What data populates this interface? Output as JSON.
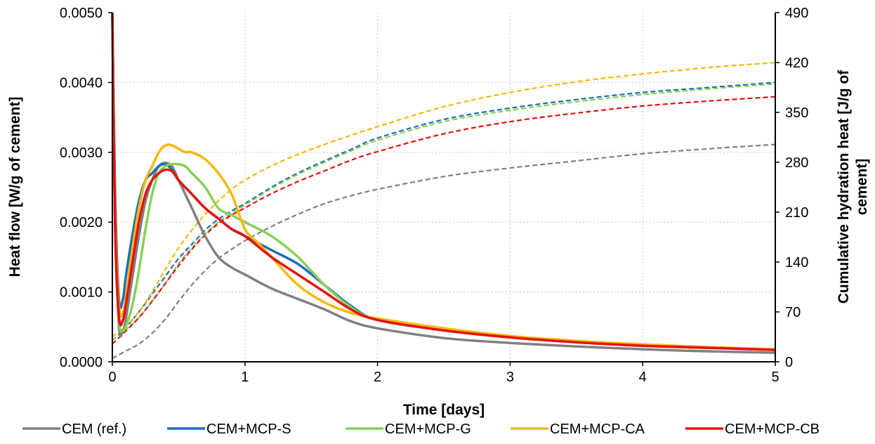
{
  "chart_data": {
    "type": "line",
    "xlabel": "Time [days]",
    "ylabel_left": "Heat flow [W/g of cement]",
    "ylabel_right": "Cumulative hydration heat [J/g of cement]",
    "ylabel_right_lines": [
      "Cumulative hydration heat [J/g of",
      "cement]"
    ],
    "xlim": [
      0,
      5
    ],
    "ylim_left": [
      0,
      0.005
    ],
    "ylim_right": [
      0,
      490
    ],
    "x_ticks": [
      "0",
      "1",
      "2",
      "3",
      "4",
      "5"
    ],
    "y_left_ticks": [
      "0.0000",
      "0.0010",
      "0.0020",
      "0.0030",
      "0.0040",
      "0.0050"
    ],
    "y_right_ticks": [
      "0",
      "70",
      "140",
      "210",
      "280",
      "350",
      "420",
      "490"
    ],
    "grid": "dotted",
    "legend_position": "bottom",
    "series": [
      {
        "name": "CEM (ref.)",
        "color": "#808080",
        "heat_flow": [
          [
            0,
            0.005
          ],
          [
            0.02,
            0.002
          ],
          [
            0.05,
            0.0005
          ],
          [
            0.08,
            0.00045
          ],
          [
            0.1,
            0.0006
          ],
          [
            0.15,
            0.0012
          ],
          [
            0.2,
            0.0018
          ],
          [
            0.25,
            0.0023
          ],
          [
            0.3,
            0.0026
          ],
          [
            0.35,
            0.0028
          ],
          [
            0.4,
            0.00285
          ],
          [
            0.45,
            0.0028
          ],
          [
            0.5,
            0.0026
          ],
          [
            0.6,
            0.0022
          ],
          [
            0.7,
            0.0018
          ],
          [
            0.8,
            0.0015
          ],
          [
            0.9,
            0.00135
          ],
          [
            1.0,
            0.00125
          ],
          [
            1.2,
            0.00105
          ],
          [
            1.4,
            0.0009
          ],
          [
            1.6,
            0.00075
          ],
          [
            1.8,
            0.00058
          ],
          [
            2.0,
            0.00048
          ],
          [
            2.5,
            0.00034
          ],
          [
            3.0,
            0.00027
          ],
          [
            3.5,
            0.00022
          ],
          [
            4.0,
            0.00018
          ],
          [
            4.5,
            0.00015
          ],
          [
            5.0,
            0.00013
          ]
        ],
        "cumulative": [
          [
            0,
            5
          ],
          [
            0.1,
            15
          ],
          [
            0.2,
            25
          ],
          [
            0.3,
            40
          ],
          [
            0.4,
            60
          ],
          [
            0.5,
            85
          ],
          [
            0.6,
            108
          ],
          [
            0.7,
            128
          ],
          [
            0.8,
            145
          ],
          [
            0.9,
            158
          ],
          [
            1.0,
            170
          ],
          [
            1.2,
            190
          ],
          [
            1.4,
            207
          ],
          [
            1.6,
            222
          ],
          [
            1.8,
            233
          ],
          [
            2.0,
            242
          ],
          [
            2.5,
            260
          ],
          [
            3.0,
            272
          ],
          [
            3.5,
            282
          ],
          [
            4.0,
            292
          ],
          [
            4.5,
            299
          ],
          [
            5.0,
            305
          ]
        ]
      },
      {
        "name": "CEM+MCP-S",
        "color": "#1a6fba",
        "heat_flow": [
          [
            0,
            0.005
          ],
          [
            0.02,
            0.0025
          ],
          [
            0.05,
            0.0009
          ],
          [
            0.08,
            0.0009
          ],
          [
            0.1,
            0.0012
          ],
          [
            0.15,
            0.0018
          ],
          [
            0.2,
            0.0023
          ],
          [
            0.25,
            0.0026
          ],
          [
            0.3,
            0.0027
          ],
          [
            0.35,
            0.0028
          ],
          [
            0.4,
            0.00283
          ],
          [
            0.45,
            0.00275
          ],
          [
            0.5,
            0.0026
          ],
          [
            0.6,
            0.0024
          ],
          [
            0.7,
            0.0022
          ],
          [
            0.8,
            0.00205
          ],
          [
            0.9,
            0.0019
          ],
          [
            1.0,
            0.0018
          ],
          [
            1.2,
            0.0016
          ],
          [
            1.4,
            0.0014
          ],
          [
            1.6,
            0.0011
          ],
          [
            1.8,
            0.0008
          ],
          [
            2.0,
            0.0006
          ],
          [
            2.5,
            0.00045
          ],
          [
            3.0,
            0.00035
          ],
          [
            3.5,
            0.00028
          ],
          [
            4.0,
            0.00023
          ],
          [
            4.5,
            0.0002
          ],
          [
            5.0,
            0.00017
          ]
        ],
        "cumulative": [
          [
            0,
            30
          ],
          [
            0.1,
            48
          ],
          [
            0.2,
            70
          ],
          [
            0.3,
            95
          ],
          [
            0.4,
            120
          ],
          [
            0.5,
            145
          ],
          [
            0.6,
            165
          ],
          [
            0.7,
            185
          ],
          [
            0.8,
            200
          ],
          [
            0.9,
            212
          ],
          [
            1.0,
            222
          ],
          [
            1.2,
            245
          ],
          [
            1.4,
            265
          ],
          [
            1.6,
            282
          ],
          [
            1.8,
            298
          ],
          [
            2.0,
            314
          ],
          [
            2.5,
            340
          ],
          [
            3.0,
            356
          ],
          [
            3.5,
            368
          ],
          [
            4.0,
            378
          ],
          [
            4.5,
            385
          ],
          [
            5.0,
            392
          ]
        ]
      },
      {
        "name": "CEM+MCP-G",
        "color": "#86d155",
        "heat_flow": [
          [
            0,
            0.005
          ],
          [
            0.02,
            0.002
          ],
          [
            0.05,
            0.0006
          ],
          [
            0.08,
            0.00045
          ],
          [
            0.1,
            0.0005
          ],
          [
            0.15,
            0.0008
          ],
          [
            0.2,
            0.0013
          ],
          [
            0.25,
            0.0019
          ],
          [
            0.3,
            0.0024
          ],
          [
            0.35,
            0.0027
          ],
          [
            0.4,
            0.0028
          ],
          [
            0.45,
            0.00283
          ],
          [
            0.5,
            0.00283
          ],
          [
            0.55,
            0.0028
          ],
          [
            0.6,
            0.0027
          ],
          [
            0.7,
            0.0025
          ],
          [
            0.8,
            0.0022
          ],
          [
            0.9,
            0.0021
          ],
          [
            1.0,
            0.002
          ],
          [
            1.2,
            0.0018
          ],
          [
            1.4,
            0.0015
          ],
          [
            1.6,
            0.0011
          ],
          [
            1.8,
            0.00078
          ],
          [
            2.0,
            0.0006
          ],
          [
            2.5,
            0.00045
          ],
          [
            3.0,
            0.00035
          ],
          [
            3.5,
            0.00028
          ],
          [
            4.0,
            0.00023
          ],
          [
            4.5,
            0.0002
          ],
          [
            5.0,
            0.00017
          ]
        ],
        "cumulative": [
          [
            0,
            30
          ],
          [
            0.1,
            45
          ],
          [
            0.2,
            62
          ],
          [
            0.3,
            85
          ],
          [
            0.4,
            110
          ],
          [
            0.5,
            138
          ],
          [
            0.6,
            160
          ],
          [
            0.7,
            180
          ],
          [
            0.8,
            196
          ],
          [
            0.9,
            209
          ],
          [
            1.0,
            220
          ],
          [
            1.2,
            243
          ],
          [
            1.4,
            263
          ],
          [
            1.6,
            280
          ],
          [
            1.8,
            296
          ],
          [
            2.0,
            311
          ],
          [
            2.5,
            337
          ],
          [
            3.0,
            353
          ],
          [
            3.5,
            365
          ],
          [
            4.0,
            375
          ],
          [
            4.5,
            383
          ],
          [
            5.0,
            390
          ]
        ]
      },
      {
        "name": "CEM+MCP-CA",
        "color": "#f5b800",
        "heat_flow": [
          [
            0,
            0.005
          ],
          [
            0.02,
            0.0022
          ],
          [
            0.05,
            0.0008
          ],
          [
            0.08,
            0.0007
          ],
          [
            0.1,
            0.0009
          ],
          [
            0.15,
            0.0016
          ],
          [
            0.2,
            0.0022
          ],
          [
            0.25,
            0.0026
          ],
          [
            0.3,
            0.0028
          ],
          [
            0.35,
            0.003
          ],
          [
            0.4,
            0.0031
          ],
          [
            0.45,
            0.0031
          ],
          [
            0.5,
            0.00305
          ],
          [
            0.55,
            0.003
          ],
          [
            0.6,
            0.003
          ],
          [
            0.7,
            0.0029
          ],
          [
            0.8,
            0.0027
          ],
          [
            0.9,
            0.0024
          ],
          [
            1.0,
            0.0019
          ],
          [
            1.1,
            0.0017
          ],
          [
            1.2,
            0.0015
          ],
          [
            1.4,
            0.0011
          ],
          [
            1.6,
            0.00085
          ],
          [
            1.8,
            0.0007
          ],
          [
            2.0,
            0.00062
          ],
          [
            2.5,
            0.00048
          ],
          [
            3.0,
            0.00037
          ],
          [
            3.5,
            0.0003
          ],
          [
            4.0,
            0.00025
          ],
          [
            4.5,
            0.00021
          ],
          [
            5.0,
            0.00018
          ]
        ],
        "cumulative": [
          [
            0,
            35
          ],
          [
            0.1,
            50
          ],
          [
            0.2,
            70
          ],
          [
            0.3,
            98
          ],
          [
            0.4,
            130
          ],
          [
            0.5,
            160
          ],
          [
            0.6,
            185
          ],
          [
            0.7,
            207
          ],
          [
            0.8,
            226
          ],
          [
            0.9,
            242
          ],
          [
            1.0,
            255
          ],
          [
            1.2,
            275
          ],
          [
            1.4,
            291
          ],
          [
            1.6,
            305
          ],
          [
            1.8,
            318
          ],
          [
            2.0,
            330
          ],
          [
            2.5,
            358
          ],
          [
            3.0,
            378
          ],
          [
            3.5,
            393
          ],
          [
            4.0,
            404
          ],
          [
            4.5,
            413
          ],
          [
            5.0,
            420
          ]
        ]
      },
      {
        "name": "CEM+MCP-CB",
        "color": "#e8100f",
        "heat_flow": [
          [
            0,
            0.005
          ],
          [
            0.02,
            0.002
          ],
          [
            0.05,
            0.00065
          ],
          [
            0.08,
            0.0006
          ],
          [
            0.1,
            0.0008
          ],
          [
            0.15,
            0.0014
          ],
          [
            0.2,
            0.002
          ],
          [
            0.25,
            0.0024
          ],
          [
            0.3,
            0.0026
          ],
          [
            0.35,
            0.0027
          ],
          [
            0.4,
            0.00275
          ],
          [
            0.45,
            0.00273
          ],
          [
            0.5,
            0.0026
          ],
          [
            0.6,
            0.0024
          ],
          [
            0.7,
            0.0022
          ],
          [
            0.8,
            0.00205
          ],
          [
            0.9,
            0.0019
          ],
          [
            1.0,
            0.0018
          ],
          [
            1.2,
            0.0015
          ],
          [
            1.4,
            0.00125
          ],
          [
            1.6,
            0.001
          ],
          [
            1.8,
            0.00075
          ],
          [
            2.0,
            0.0006
          ],
          [
            2.5,
            0.00045
          ],
          [
            3.0,
            0.00035
          ],
          [
            3.5,
            0.00028
          ],
          [
            4.0,
            0.00023
          ],
          [
            4.5,
            0.0002
          ],
          [
            5.0,
            0.00017
          ]
        ],
        "cumulative": [
          [
            0,
            25
          ],
          [
            0.1,
            43
          ],
          [
            0.2,
            62
          ],
          [
            0.3,
            85
          ],
          [
            0.4,
            110
          ],
          [
            0.5,
            135
          ],
          [
            0.6,
            158
          ],
          [
            0.7,
            178
          ],
          [
            0.8,
            194
          ],
          [
            0.9,
            206
          ],
          [
            1.0,
            216
          ],
          [
            1.2,
            236
          ],
          [
            1.4,
            253
          ],
          [
            1.6,
            268
          ],
          [
            1.8,
            283
          ],
          [
            2.0,
            295
          ],
          [
            2.5,
            320
          ],
          [
            3.0,
            337
          ],
          [
            3.5,
            349
          ],
          [
            4.0,
            359
          ],
          [
            4.5,
            366
          ],
          [
            5.0,
            372
          ]
        ]
      }
    ]
  }
}
